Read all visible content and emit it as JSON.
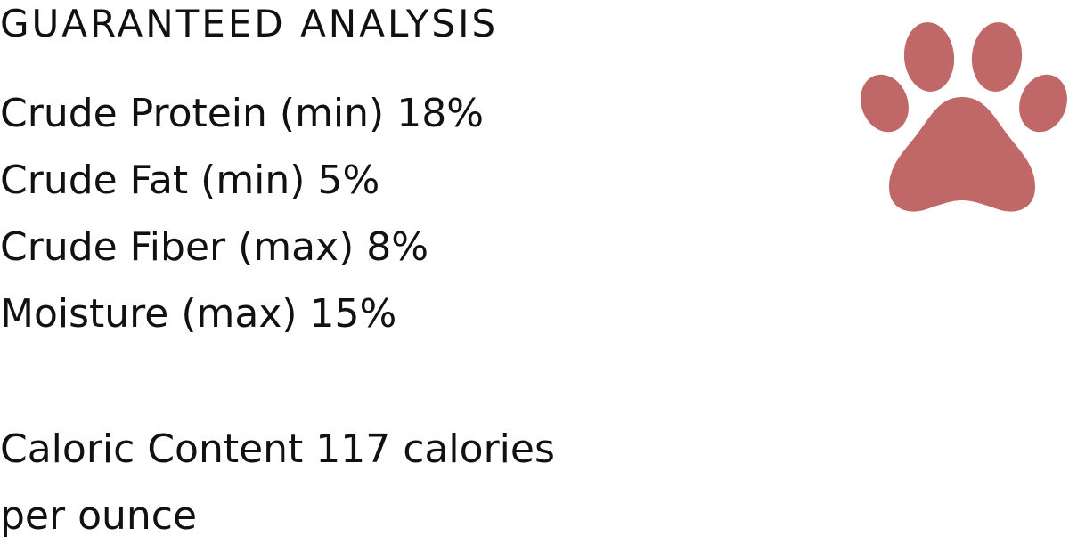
{
  "title": "GUARANTEED ANALYSIS",
  "analysis": [
    "Crude Protein (min) 18%",
    "Crude Fat (min) 5%",
    "Crude Fiber (max) 8%",
    "Moisture (max) 15%"
  ],
  "caloric": [
    "Caloric Content 117 calories",
    "per ounce"
  ],
  "icon": {
    "name": "paw-print-icon",
    "color": "#c06868"
  }
}
